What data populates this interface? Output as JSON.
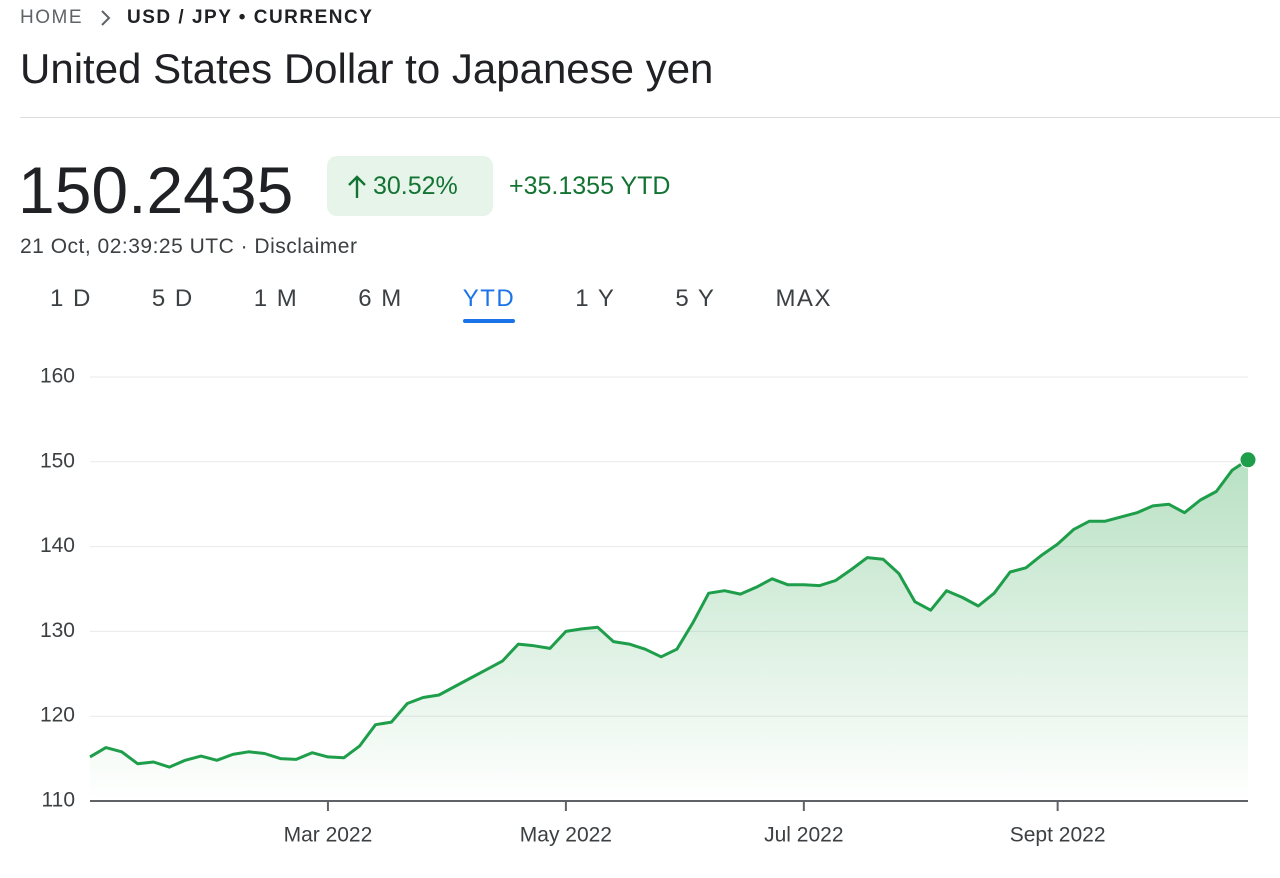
{
  "breadcrumb": {
    "home": "HOME",
    "current": "USD / JPY • CURRENCY"
  },
  "title": "United States Dollar to Japanese yen",
  "price": "150.2435",
  "change_percent": "30.52%",
  "change_absolute": "+35.1355 YTD",
  "timestamp": "21 Oct, 02:39:25 UTC · Disclaimer",
  "tabs": [
    "1 D",
    "5 D",
    "1 M",
    "6 M",
    "YTD",
    "1 Y",
    "5 Y",
    "MAX"
  ],
  "active_tab": 4,
  "chart_data": {
    "type": "line",
    "color": "#1e9e4a",
    "grid": true,
    "area": true,
    "end_marker": true,
    "categories": [
      null,
      null,
      null,
      null,
      null,
      null,
      null,
      null,
      null,
      null,
      null,
      null,
      null,
      null,
      null,
      "Mar 2022",
      null,
      null,
      null,
      null,
      null,
      null,
      null,
      null,
      null,
      null,
      null,
      null,
      null,
      null,
      "May 2022",
      null,
      null,
      null,
      null,
      null,
      null,
      null,
      null,
      null,
      null,
      null,
      null,
      null,
      null,
      "Jul 2022",
      null,
      null,
      null,
      null,
      null,
      null,
      null,
      null,
      null,
      null,
      null,
      null,
      null,
      null,
      null,
      "Sept 2022",
      null,
      null,
      null,
      null,
      null,
      null,
      null,
      null,
      null,
      null,
      null,
      null
    ],
    "values": [
      115.2,
      116.3,
      115.8,
      114.4,
      114.6,
      114.0,
      114.8,
      115.3,
      114.8,
      115.5,
      115.8,
      115.6,
      115.0,
      114.9,
      115.7,
      115.2,
      115.1,
      116.5,
      119.0,
      119.3,
      121.5,
      122.2,
      122.5,
      123.5,
      124.5,
      125.5,
      126.5,
      128.5,
      128.3,
      128.0,
      130.0,
      130.3,
      130.5,
      128.8,
      128.5,
      127.9,
      127.0,
      127.9,
      131.0,
      134.5,
      134.8,
      134.4,
      135.2,
      136.2,
      135.5,
      135.5,
      135.4,
      136.0,
      137.3,
      138.7,
      138.5,
      136.8,
      133.5,
      132.5,
      134.8,
      134.0,
      133.0,
      134.5,
      137.0,
      137.5,
      139.0,
      140.3,
      142.0,
      143.0,
      143.0,
      143.5,
      144.0,
      144.8,
      145.0,
      144.0,
      145.5,
      146.5,
      149.0,
      150.24
    ],
    "ylim": [
      110,
      160
    ],
    "yticks": [
      110,
      120,
      130,
      140,
      150,
      160
    ]
  }
}
